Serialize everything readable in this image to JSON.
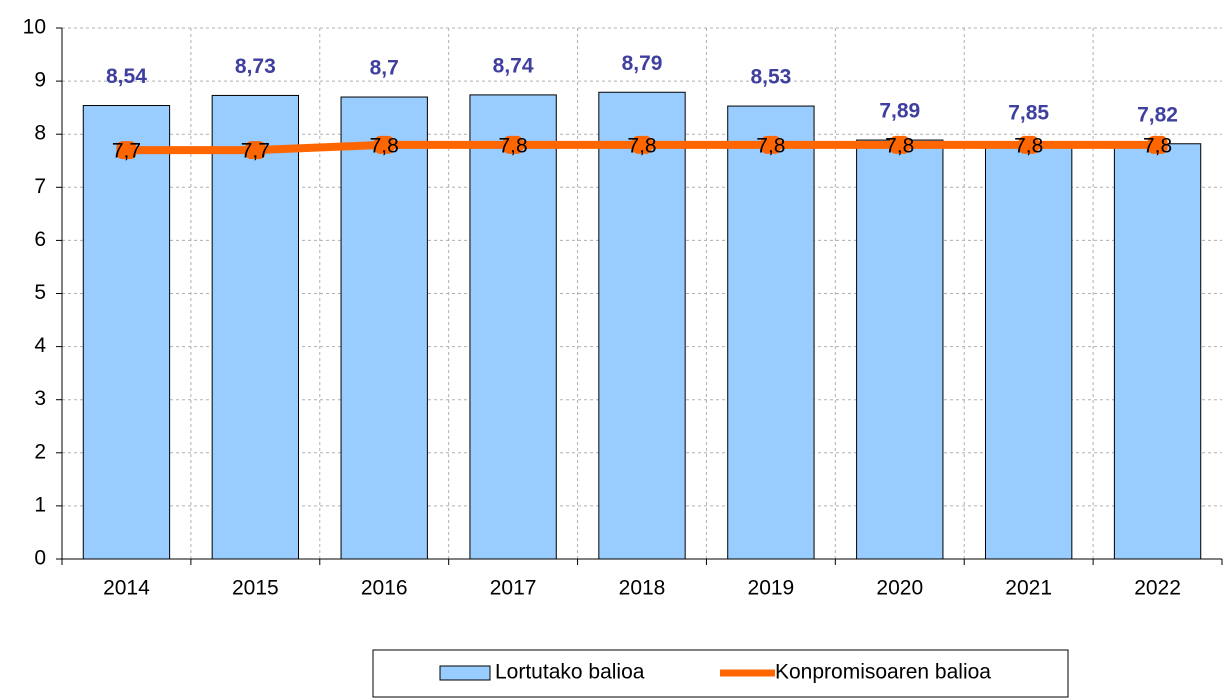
{
  "chart_data": {
    "type": "bar",
    "categories": [
      "2014",
      "2015",
      "2016",
      "2017",
      "2018",
      "2019",
      "2020",
      "2021",
      "2022"
    ],
    "series": [
      {
        "name": "Lortutako balioa",
        "type": "bar",
        "color": "#99ccff",
        "values": [
          8.54,
          8.73,
          8.7,
          8.74,
          8.79,
          8.53,
          7.89,
          7.85,
          7.82
        ],
        "value_labels": [
          "8,54",
          "8,73",
          "8,7",
          "8,74",
          "8,79",
          "8,53",
          "7,89",
          "7,85",
          "7,82"
        ]
      },
      {
        "name": "Konpromisoaren balioa",
        "type": "line",
        "color": "#ff6600",
        "values": [
          7.7,
          7.7,
          7.8,
          7.8,
          7.8,
          7.8,
          7.8,
          7.8,
          7.8
        ],
        "value_labels": [
          "7,7",
          "7,7",
          "7,8",
          "7,8",
          "7,8",
          "7,8",
          "7,8",
          "7,8",
          "7,8"
        ]
      }
    ],
    "ylim": [
      0,
      10
    ],
    "yticks": [
      0,
      1,
      2,
      3,
      4,
      5,
      6,
      7,
      8,
      9,
      10
    ],
    "grid": true,
    "legend": "bottom"
  }
}
